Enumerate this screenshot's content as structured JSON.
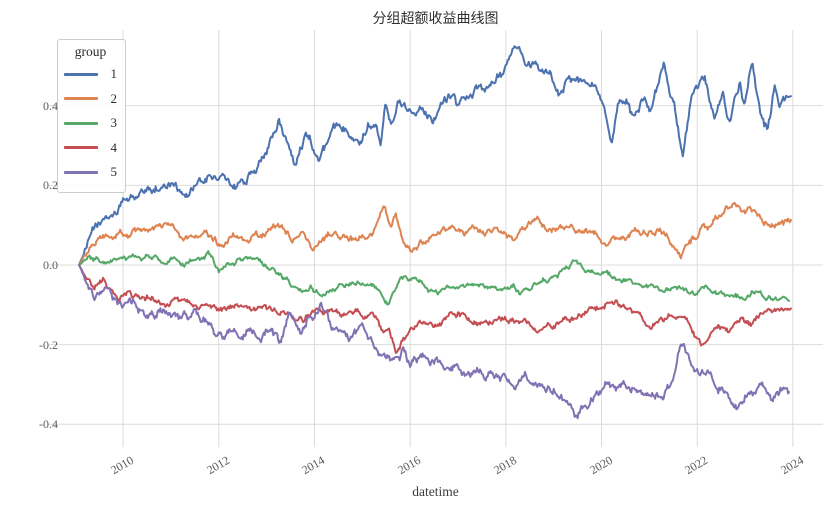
{
  "chart_data": {
    "type": "line",
    "title": "分组超额收益曲线图",
    "xlabel": "datetime",
    "ylabel": "",
    "grid": true,
    "grid_color": "#dcdcdc",
    "background": "#ffffff",
    "legend": {
      "title": "group",
      "position": "upper left"
    },
    "x_ticks": [
      2010,
      2012,
      2014,
      2016,
      2018,
      2020,
      2022,
      2024
    ],
    "y_ticks": [
      0.4,
      0.2,
      0.0,
      -0.2,
      -0.4
    ],
    "y_tick_labels": [
      "0.4",
      "0.2",
      "0.0",
      "-0.2",
      "-0.4"
    ],
    "xlim": [
      2008.43,
      2024.63
    ],
    "ylim": [
      -0.457,
      0.59
    ],
    "series": [
      {
        "name": "1",
        "color": "#4C72B0",
        "noise": 0.009,
        "points": [
          [
            2009.08,
            0
          ],
          [
            2009.2,
            0.04
          ],
          [
            2009.42,
            0.09
          ],
          [
            2009.55,
            0.105
          ],
          [
            2009.8,
            0.125
          ],
          [
            2010,
            0.16
          ],
          [
            2010.2,
            0.17
          ],
          [
            2010.65,
            0.19
          ],
          [
            2011.05,
            0.21
          ],
          [
            2011.33,
            0.18
          ],
          [
            2011.6,
            0.2
          ],
          [
            2011.82,
            0.22
          ],
          [
            2012.05,
            0.215
          ],
          [
            2012.3,
            0.197
          ],
          [
            2012.55,
            0.21
          ],
          [
            2012.87,
            0.256
          ],
          [
            2013.25,
            0.352
          ],
          [
            2013.6,
            0.264
          ],
          [
            2013.81,
            0.331
          ],
          [
            2013.92,
            0.314
          ],
          [
            2014.09,
            0.256
          ],
          [
            2014.4,
            0.331
          ],
          [
            2014.68,
            0.348
          ],
          [
            2014.92,
            0.314
          ],
          [
            2015.13,
            0.352
          ],
          [
            2015.27,
            0.369
          ],
          [
            2015.38,
            0.314
          ],
          [
            2015.48,
            0.419
          ],
          [
            2015.6,
            0.37
          ],
          [
            2015.75,
            0.41
          ],
          [
            2015.87,
            0.398
          ],
          [
            2016.04,
            0.381
          ],
          [
            2016.21,
            0.415
          ],
          [
            2016.46,
            0.365
          ],
          [
            2016.63,
            0.41
          ],
          [
            2016.91,
            0.44
          ],
          [
            2016.98,
            0.402
          ],
          [
            2017.26,
            0.432
          ],
          [
            2017.47,
            0.444
          ],
          [
            2017.58,
            0.423
          ],
          [
            2017.86,
            0.482
          ],
          [
            2018.03,
            0.494
          ],
          [
            2018.17,
            0.54
          ],
          [
            2018.31,
            0.519
          ],
          [
            2018.45,
            0.49
          ],
          [
            2018.66,
            0.507
          ],
          [
            2018.8,
            0.475
          ],
          [
            2018.94,
            0.465
          ],
          [
            2019.11,
            0.44
          ],
          [
            2019.32,
            0.473
          ],
          [
            2019.64,
            0.452
          ],
          [
            2019.88,
            0.457
          ],
          [
            2020.02,
            0.432
          ],
          [
            2020.22,
            0.331
          ],
          [
            2020.34,
            0.411
          ],
          [
            2020.55,
            0.398
          ],
          [
            2020.62,
            0.373
          ],
          [
            2020.86,
            0.415
          ],
          [
            2021.03,
            0.377
          ],
          [
            2021.21,
            0.457
          ],
          [
            2021.31,
            0.494
          ],
          [
            2021.42,
            0.44
          ],
          [
            2021.52,
            0.398
          ],
          [
            2021.7,
            0.26
          ],
          [
            2021.87,
            0.39
          ],
          [
            2022.15,
            0.465
          ],
          [
            2022.36,
            0.369
          ],
          [
            2022.54,
            0.436
          ],
          [
            2022.68,
            0.365
          ],
          [
            2022.89,
            0.457
          ],
          [
            2022.99,
            0.386
          ],
          [
            2023.15,
            0.517
          ],
          [
            2023.33,
            0.398
          ],
          [
            2023.48,
            0.34
          ],
          [
            2023.62,
            0.45
          ],
          [
            2023.73,
            0.415
          ],
          [
            2023.87,
            0.427
          ],
          [
            2023.97,
            0.419
          ]
        ]
      },
      {
        "name": "2",
        "color": "#DD8452",
        "noise": 0.007,
        "points": [
          [
            2009.08,
            0
          ],
          [
            2009.3,
            0.04
          ],
          [
            2009.52,
            0.063
          ],
          [
            2009.73,
            0.067
          ],
          [
            2010,
            0.075
          ],
          [
            2010.3,
            0.08
          ],
          [
            2010.6,
            0.085
          ],
          [
            2011.02,
            0.092
          ],
          [
            2011.19,
            0.055
          ],
          [
            2011.45,
            0.075
          ],
          [
            2011.68,
            0.084
          ],
          [
            2012.03,
            0.046
          ],
          [
            2012.38,
            0.08
          ],
          [
            2012.62,
            0.067
          ],
          [
            2012.9,
            0.075
          ],
          [
            2013.1,
            0.09
          ],
          [
            2013.3,
            0.095
          ],
          [
            2013.55,
            0.06
          ],
          [
            2013.75,
            0.08
          ],
          [
            2013.95,
            0.035
          ],
          [
            2014.15,
            0.06
          ],
          [
            2014.4,
            0.075
          ],
          [
            2014.7,
            0.07
          ],
          [
            2015,
            0.08
          ],
          [
            2015.2,
            0.07
          ],
          [
            2015.45,
            0.155
          ],
          [
            2015.6,
            0.09
          ],
          [
            2015.7,
            0.12
          ],
          [
            2015.85,
            0.055
          ],
          [
            2016.05,
            0.028
          ],
          [
            2016.5,
            0.075
          ],
          [
            2016.9,
            0.109
          ],
          [
            2017.2,
            0.08
          ],
          [
            2017.5,
            0.09
          ],
          [
            2017.8,
            0.085
          ],
          [
            2018.1,
            0.054
          ],
          [
            2018.4,
            0.09
          ],
          [
            2018.7,
            0.114
          ],
          [
            2019,
            0.09
          ],
          [
            2019.3,
            0.095
          ],
          [
            2019.6,
            0.085
          ],
          [
            2019.9,
            0.08
          ],
          [
            2020.1,
            0.046
          ],
          [
            2020.4,
            0.075
          ],
          [
            2020.7,
            0.08
          ],
          [
            2021,
            0.08
          ],
          [
            2021.3,
            0.09
          ],
          [
            2021.66,
            0.02
          ],
          [
            2022.07,
            0.092
          ],
          [
            2022.3,
            0.1
          ],
          [
            2022.6,
            0.14
          ],
          [
            2022.9,
            0.145
          ],
          [
            2023.2,
            0.15
          ],
          [
            2023.37,
            0.105
          ],
          [
            2023.7,
            0.117
          ],
          [
            2023.97,
            0.105
          ]
        ]
      },
      {
        "name": "3",
        "color": "#55A868",
        "noise": 0.005,
        "points": [
          [
            2009.08,
            0
          ],
          [
            2009.3,
            0.012
          ],
          [
            2009.6,
            0.005
          ],
          [
            2010,
            0.01
          ],
          [
            2010.35,
            0.022
          ],
          [
            2010.7,
            0.012
          ],
          [
            2011,
            0.018
          ],
          [
            2011.3,
            0.008
          ],
          [
            2011.6,
            0.015
          ],
          [
            2011.82,
            0.029
          ],
          [
            2012,
            -0.018
          ],
          [
            2012.4,
            0.013
          ],
          [
            2012.7,
            0.005
          ],
          [
            2013,
            -0.005
          ],
          [
            2013.29,
            -0.017
          ],
          [
            2013.6,
            -0.063
          ],
          [
            2013.92,
            -0.05
          ],
          [
            2014.13,
            -0.071
          ],
          [
            2014.47,
            -0.055
          ],
          [
            2015.03,
            -0.042
          ],
          [
            2015.3,
            -0.055
          ],
          [
            2015.52,
            -0.092
          ],
          [
            2015.8,
            -0.038
          ],
          [
            2016.29,
            -0.05
          ],
          [
            2016.6,
            -0.071
          ],
          [
            2017.05,
            -0.046
          ],
          [
            2017.61,
            -0.059
          ],
          [
            2018.17,
            -0.05
          ],
          [
            2018.31,
            -0.071
          ],
          [
            2018.73,
            -0.042
          ],
          [
            2019,
            -0.03
          ],
          [
            2019.39,
            0.008
          ],
          [
            2019.6,
            -0.01
          ],
          [
            2020.12,
            -0.025
          ],
          [
            2020.5,
            -0.04
          ],
          [
            2020.9,
            -0.059
          ],
          [
            2021.52,
            -0.055
          ],
          [
            2021.9,
            -0.075
          ],
          [
            2022.15,
            -0.05
          ],
          [
            2022.6,
            -0.075
          ],
          [
            2022.98,
            -0.088
          ],
          [
            2023.26,
            -0.067
          ],
          [
            2023.61,
            -0.088
          ],
          [
            2023.93,
            -0.084
          ]
        ]
      },
      {
        "name": "4",
        "color": "#C44E52",
        "noise": 0.006,
        "points": [
          [
            2009.08,
            0
          ],
          [
            2009.25,
            -0.04
          ],
          [
            2009.4,
            -0.06
          ],
          [
            2009.59,
            -0.038
          ],
          [
            2009.9,
            -0.085
          ],
          [
            2010.15,
            -0.075
          ],
          [
            2010.3,
            -0.081
          ],
          [
            2010.77,
            -0.094
          ],
          [
            2011.1,
            -0.085
          ],
          [
            2011.57,
            -0.111
          ],
          [
            2012,
            -0.114
          ],
          [
            2012.35,
            -0.1
          ],
          [
            2012.7,
            -0.11
          ],
          [
            2013.2,
            -0.111
          ],
          [
            2013.5,
            -0.125
          ],
          [
            2013.8,
            -0.127
          ],
          [
            2014,
            -0.11
          ],
          [
            2014.3,
            -0.125
          ],
          [
            2014.75,
            -0.127
          ],
          [
            2015,
            -0.12
          ],
          [
            2015.2,
            -0.135
          ],
          [
            2015.45,
            -0.174
          ],
          [
            2015.55,
            -0.15
          ],
          [
            2015.7,
            -0.22
          ],
          [
            2015.85,
            -0.19
          ],
          [
            2016,
            -0.163
          ],
          [
            2016.21,
            -0.147
          ],
          [
            2016.5,
            -0.155
          ],
          [
            2017.02,
            -0.126
          ],
          [
            2017.47,
            -0.143
          ],
          [
            2018.17,
            -0.138
          ],
          [
            2018.66,
            -0.159
          ],
          [
            2019,
            -0.15
          ],
          [
            2019.5,
            -0.13
          ],
          [
            2019.95,
            -0.106
          ],
          [
            2020.16,
            -0.081
          ],
          [
            2020.5,
            -0.11
          ],
          [
            2021.03,
            -0.149
          ],
          [
            2021.4,
            -0.13
          ],
          [
            2021.7,
            -0.114
          ],
          [
            2022.08,
            -0.199
          ],
          [
            2022.43,
            -0.144
          ],
          [
            2022.64,
            -0.165
          ],
          [
            2022.92,
            -0.132
          ],
          [
            2023.13,
            -0.152
          ],
          [
            2023.48,
            -0.101
          ],
          [
            2023.61,
            -0.114
          ],
          [
            2023.97,
            -0.111
          ]
        ]
      },
      {
        "name": "5",
        "color": "#8172B3",
        "noise": 0.009,
        "points": [
          [
            2009.08,
            0
          ],
          [
            2009.25,
            -0.05
          ],
          [
            2009.4,
            -0.081
          ],
          [
            2009.69,
            -0.059
          ],
          [
            2010,
            -0.117
          ],
          [
            2010.15,
            -0.092
          ],
          [
            2010.46,
            -0.136
          ],
          [
            2010.77,
            -0.119
          ],
          [
            2011.15,
            -0.136
          ],
          [
            2011.5,
            -0.13
          ],
          [
            2011.8,
            -0.15
          ],
          [
            2012.14,
            -0.174
          ],
          [
            2012.35,
            -0.161
          ],
          [
            2012.87,
            -0.174
          ],
          [
            2013.11,
            -0.161
          ],
          [
            2013.29,
            -0.195
          ],
          [
            2013.5,
            -0.12
          ],
          [
            2013.7,
            -0.17
          ],
          [
            2013.9,
            -0.13
          ],
          [
            2014.13,
            -0.098
          ],
          [
            2014.4,
            -0.16
          ],
          [
            2014.75,
            -0.182
          ],
          [
            2015,
            -0.16
          ],
          [
            2015.3,
            -0.212
          ],
          [
            2015.6,
            -0.228
          ],
          [
            2015.73,
            -0.246
          ],
          [
            2015.87,
            -0.212
          ],
          [
            2016,
            -0.246
          ],
          [
            2016.3,
            -0.23
          ],
          [
            2016.64,
            -0.246
          ],
          [
            2017.02,
            -0.237
          ],
          [
            2017.2,
            -0.266
          ],
          [
            2017.5,
            -0.275
          ],
          [
            2018,
            -0.285
          ],
          [
            2018.2,
            -0.291
          ],
          [
            2018.5,
            -0.28
          ],
          [
            2018.73,
            -0.296
          ],
          [
            2019,
            -0.31
          ],
          [
            2019.2,
            -0.33
          ],
          [
            2019.46,
            -0.377
          ],
          [
            2019.7,
            -0.355
          ],
          [
            2019.9,
            -0.323
          ],
          [
            2020.13,
            -0.296
          ],
          [
            2020.4,
            -0.31
          ],
          [
            2020.7,
            -0.32
          ],
          [
            2021,
            -0.315
          ],
          [
            2021.3,
            -0.32
          ],
          [
            2021.45,
            -0.3
          ],
          [
            2021.66,
            -0.19
          ],
          [
            2021.9,
            -0.246
          ],
          [
            2022.04,
            -0.284
          ],
          [
            2022.3,
            -0.275
          ],
          [
            2022.43,
            -0.3
          ],
          [
            2022.85,
            -0.364
          ],
          [
            2023.1,
            -0.32
          ],
          [
            2023.3,
            -0.3
          ],
          [
            2023.55,
            -0.338
          ],
          [
            2023.75,
            -0.31
          ],
          [
            2023.93,
            -0.321
          ]
        ]
      }
    ]
  }
}
